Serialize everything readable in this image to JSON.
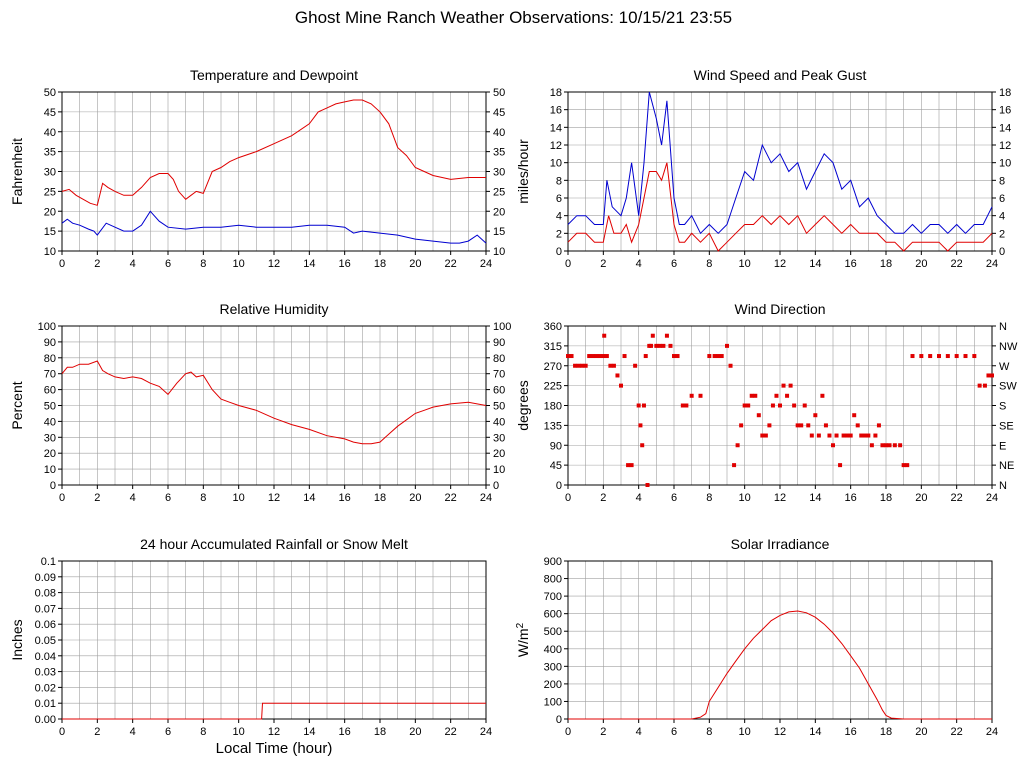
{
  "title": "Ghost Mine Ranch Weather Observations: 10/15/21 23:55",
  "xlabel_bottom": "Local Time (hour)",
  "colors": {
    "red": "#e00000",
    "blue": "#0000d0",
    "grid": "#a0a0a0"
  },
  "chart_data": [
    {
      "id": "temp",
      "type": "line",
      "title": "Temperature and Dewpoint",
      "ylabel": "Fahrenheit",
      "xlim": [
        0,
        24
      ],
      "ylim": [
        10,
        50
      ],
      "xticks": [
        0,
        2,
        4,
        6,
        8,
        10,
        12,
        14,
        16,
        18,
        20,
        22,
        24
      ],
      "yticks": [
        10,
        15,
        20,
        25,
        30,
        35,
        40,
        45,
        50
      ],
      "ytick_labels": [
        "10",
        "15",
        "20",
        "25",
        "30",
        "35",
        "40",
        "45",
        "50"
      ],
      "right_ticks": [
        "10",
        "15",
        "20",
        "25",
        "30",
        "35",
        "40",
        "45",
        "50"
      ],
      "series": [
        {
          "color": "#e00000",
          "x": [
            0,
            0.4,
            0.8,
            1.2,
            1.6,
            2,
            2.3,
            2.6,
            3,
            3.5,
            4,
            4.5,
            5,
            5.5,
            6,
            6.3,
            6.6,
            7,
            7.3,
            7.6,
            8,
            8.5,
            9,
            9.5,
            10,
            11,
            12,
            13,
            14,
            14.5,
            15,
            15.5,
            16,
            16.5,
            17,
            17.5,
            18,
            18.5,
            19,
            19.5,
            20,
            20.5,
            21,
            22,
            23,
            24
          ],
          "y": [
            25,
            25.5,
            24,
            23,
            22,
            21.5,
            27,
            26,
            25,
            24,
            24,
            26,
            28.5,
            29.5,
            29.5,
            28,
            25,
            23,
            24,
            25,
            24.5,
            30,
            31,
            32.5,
            33.5,
            35,
            37,
            39,
            42,
            45,
            46,
            47,
            47.5,
            48,
            48,
            47,
            45,
            42,
            36,
            34,
            31,
            30,
            29,
            28,
            28.5,
            28.5
          ]
        },
        {
          "color": "#0000d0",
          "x": [
            0,
            0.3,
            0.6,
            1,
            1.5,
            1.8,
            2,
            2.5,
            3,
            3.5,
            4,
            4.5,
            5,
            5.5,
            6,
            7,
            8,
            9,
            10,
            11,
            12,
            13,
            14,
            15,
            16,
            16.5,
            17,
            18,
            19,
            20,
            21,
            22,
            22.5,
            23,
            23.5,
            24
          ],
          "y": [
            17,
            18,
            17,
            16.5,
            15.5,
            15,
            14,
            17,
            16,
            15,
            15,
            16.5,
            20,
            17.5,
            16,
            15.5,
            16,
            16,
            16.5,
            16,
            16,
            16,
            16.5,
            16.5,
            16,
            14.5,
            15,
            14.5,
            14,
            13,
            12.5,
            12,
            12,
            12.5,
            14,
            12
          ]
        }
      ]
    },
    {
      "id": "wind",
      "type": "line",
      "title": "Wind Speed and Peak Gust",
      "ylabel": "miles/hour",
      "xlim": [
        0,
        24
      ],
      "ylim": [
        0,
        18
      ],
      "xticks": [
        0,
        2,
        4,
        6,
        8,
        10,
        12,
        14,
        16,
        18,
        20,
        22,
        24
      ],
      "yticks": [
        0,
        2,
        4,
        6,
        8,
        10,
        12,
        14,
        16,
        18
      ],
      "ytick_labels": [
        "0",
        "2",
        "4",
        "6",
        "8",
        "10",
        "12",
        "14",
        "16",
        "18"
      ],
      "right_ticks": [
        "0",
        "2",
        "4",
        "6",
        "8",
        "10",
        "12",
        "14",
        "16",
        "18"
      ],
      "series": [
        {
          "color": "#0000d0",
          "x": [
            0,
            0.5,
            1,
            1.5,
            2,
            2.2,
            2.5,
            3,
            3.3,
            3.6,
            4,
            4.3,
            4.6,
            5,
            5.3,
            5.6,
            6,
            6.3,
            6.6,
            7,
            7.5,
            8,
            8.5,
            9,
            9.5,
            10,
            10.5,
            11,
            11.5,
            12,
            12.5,
            13,
            13.5,
            14,
            14.5,
            15,
            15.5,
            16,
            16.5,
            17,
            17.5,
            18,
            18.5,
            19,
            19.5,
            20,
            20.5,
            21,
            21.5,
            22,
            22.5,
            23,
            23.5,
            24
          ],
          "y": [
            3,
            4,
            4,
            3,
            3,
            8,
            5,
            4,
            6,
            10,
            4,
            10,
            18,
            15,
            12,
            17,
            6,
            3,
            3,
            4,
            2,
            3,
            2,
            3,
            6,
            9,
            8,
            12,
            10,
            11,
            9,
            10,
            7,
            9,
            11,
            10,
            7,
            8,
            5,
            6,
            4,
            3,
            2,
            2,
            3,
            2,
            3,
            3,
            2,
            3,
            2,
            3,
            3,
            5
          ]
        },
        {
          "color": "#e00000",
          "x": [
            0,
            0.5,
            1,
            1.5,
            2,
            2.3,
            2.6,
            3,
            3.3,
            3.6,
            4,
            4.3,
            4.6,
            5,
            5.3,
            5.6,
            6,
            6.3,
            6.6,
            7,
            7.5,
            8,
            8.5,
            9,
            9.5,
            10,
            10.5,
            11,
            11.5,
            12,
            12.5,
            13,
            13.5,
            14,
            14.5,
            15,
            15.5,
            16,
            16.5,
            17,
            17.5,
            18,
            18.5,
            19,
            19.5,
            20,
            20.5,
            21,
            21.5,
            22,
            22.5,
            23,
            23.5,
            24
          ],
          "y": [
            1,
            2,
            2,
            1,
            1,
            4,
            2,
            2,
            3,
            1,
            3,
            6,
            9,
            9,
            8,
            10,
            3,
            1,
            1,
            2,
            1,
            2,
            0,
            1,
            2,
            3,
            3,
            4,
            3,
            4,
            3,
            4,
            2,
            3,
            4,
            3,
            2,
            3,
            2,
            2,
            2,
            1,
            1,
            0,
            1,
            1,
            1,
            1,
            0,
            1,
            1,
            1,
            1,
            2
          ]
        }
      ]
    },
    {
      "id": "rh",
      "type": "line",
      "title": "Relative Humidity",
      "ylabel": "Percent",
      "xlim": [
        0,
        24
      ],
      "ylim": [
        0,
        100
      ],
      "xticks": [
        0,
        2,
        4,
        6,
        8,
        10,
        12,
        14,
        16,
        18,
        20,
        22,
        24
      ],
      "yticks": [
        0,
        10,
        20,
        30,
        40,
        50,
        60,
        70,
        80,
        90,
        100
      ],
      "ytick_labels": [
        "0",
        "10",
        "20",
        "30",
        "40",
        "50",
        "60",
        "70",
        "80",
        "90",
        "100"
      ],
      "right_ticks": [
        "0",
        "10",
        "20",
        "30",
        "40",
        "50",
        "60",
        "70",
        "80",
        "90",
        "100"
      ],
      "series": [
        {
          "color": "#e00000",
          "x": [
            0,
            0.3,
            0.6,
            1,
            1.5,
            2,
            2.3,
            2.6,
            3,
            3.5,
            4,
            4.5,
            5,
            5.5,
            6,
            6.5,
            7,
            7.3,
            7.6,
            8,
            8.5,
            9,
            9.5,
            10,
            11,
            12,
            13,
            14,
            15,
            16,
            16.5,
            17,
            17.5,
            18,
            18.5,
            19,
            19.5,
            20,
            20.5,
            21,
            21.5,
            22,
            23,
            24
          ],
          "y": [
            70,
            74,
            74,
            76,
            76,
            78,
            72,
            70,
            68,
            67,
            68,
            67,
            64,
            62,
            57,
            64,
            70,
            71,
            68,
            69,
            60,
            54,
            52,
            50,
            47,
            42,
            38,
            35,
            31,
            29,
            27,
            26,
            26,
            27,
            32,
            37,
            41,
            45,
            47,
            49,
            50,
            51,
            52,
            50
          ]
        }
      ]
    },
    {
      "id": "wdir",
      "type": "scatter",
      "title": "Wind Direction",
      "ylabel": "degrees",
      "xlim": [
        0,
        24
      ],
      "ylim": [
        0,
        360
      ],
      "xticks": [
        0,
        2,
        4,
        6,
        8,
        10,
        12,
        14,
        16,
        18,
        20,
        22,
        24
      ],
      "yticks": [
        0,
        45,
        90,
        135,
        180,
        225,
        270,
        315,
        360
      ],
      "ytick_labels": [
        "0",
        "45",
        "90",
        "135",
        "180",
        "225",
        "270",
        "315",
        "360"
      ],
      "right_ticks": [
        "N",
        "NE",
        "E",
        "SE",
        "S",
        "SW",
        "W",
        "NW",
        "N"
      ],
      "series": [
        {
          "color": "#e00000",
          "x": [
            0,
            0.2,
            0.4,
            0.6,
            0.8,
            1,
            1.2,
            1.4,
            1.6,
            1.8,
            2,
            2.05,
            2.2,
            2.4,
            2.6,
            2.8,
            3,
            3.2,
            3.4,
            3.6,
            3.8,
            4,
            4.1,
            4.2,
            4.3,
            4.4,
            4.5,
            4.6,
            4.7,
            4.8,
            5,
            5.2,
            5.4,
            5.6,
            5.8,
            6,
            6.2,
            6.5,
            6.7,
            7,
            7.5,
            8,
            8.3,
            8.5,
            8.7,
            9,
            9.2,
            9.4,
            9.6,
            9.8,
            10,
            10.2,
            10.4,
            10.6,
            10.8,
            11,
            11.2,
            11.4,
            11.6,
            11.8,
            12,
            12.2,
            12.4,
            12.6,
            12.8,
            13,
            13.2,
            13.4,
            13.6,
            13.8,
            14,
            14.2,
            14.4,
            14.6,
            14.8,
            15,
            15.2,
            15.4,
            15.6,
            15.8,
            16,
            16.2,
            16.4,
            16.6,
            16.8,
            17,
            17.2,
            17.4,
            17.6,
            17.8,
            18,
            18.2,
            18.5,
            18.8,
            19,
            19.2,
            19.5,
            20,
            20.5,
            21,
            21.5,
            22,
            22.5,
            23,
            23.3,
            23.6,
            23.8,
            24
          ],
          "y": [
            292,
            292,
            270,
            270,
            270,
            270,
            292,
            292,
            292,
            292,
            292,
            338,
            292,
            270,
            270,
            248,
            225,
            292,
            45,
            45,
            270,
            180,
            135,
            90,
            180,
            292,
            0,
            315,
            315,
            338,
            315,
            315,
            315,
            338,
            315,
            292,
            292,
            180,
            180,
            202,
            202,
            292,
            292,
            292,
            292,
            315,
            270,
            45,
            90,
            135,
            180,
            180,
            202,
            202,
            158,
            112,
            112,
            135,
            180,
            202,
            180,
            225,
            202,
            225,
            180,
            135,
            135,
            180,
            135,
            112,
            158,
            112,
            202,
            135,
            112,
            90,
            112,
            45,
            112,
            112,
            112,
            158,
            135,
            112,
            112,
            112,
            90,
            112,
            135,
            90,
            90,
            90,
            90,
            90,
            45,
            45,
            292,
            292,
            292,
            292,
            292,
            292,
            292,
            292,
            225,
            225,
            248,
            248
          ]
        }
      ]
    },
    {
      "id": "rain",
      "type": "line",
      "title": "24 hour Accumulated Rainfall or Snow Melt",
      "ylabel": "Inches",
      "xlim": [
        0,
        24
      ],
      "ylim": [
        0,
        0.1
      ],
      "xticks": [
        0,
        2,
        4,
        6,
        8,
        10,
        12,
        14,
        16,
        18,
        20,
        22,
        24
      ],
      "yticks": [
        0,
        0.01,
        0.02,
        0.03,
        0.04,
        0.05,
        0.06,
        0.07,
        0.08,
        0.09,
        0.1
      ],
      "ytick_labels": [
        "0.00",
        "0.01",
        "0.02",
        "0.03",
        "0.04",
        "0.05",
        "0.06",
        "0.07",
        "0.08",
        "0.09",
        "0.1"
      ],
      "right_ticks": [],
      "series": [
        {
          "color": "#e00000",
          "x": [
            0,
            11.3,
            11.35,
            24
          ],
          "y": [
            0,
            0,
            0.01,
            0.01
          ]
        }
      ]
    },
    {
      "id": "solar",
      "type": "line",
      "title": "Solar Irradiance",
      "ylabel": "W/m",
      "ylabel_sup": "2",
      "xlim": [
        0,
        24
      ],
      "ylim": [
        0,
        900
      ],
      "xticks": [
        0,
        2,
        4,
        6,
        8,
        10,
        12,
        14,
        16,
        18,
        20,
        22,
        24
      ],
      "yticks": [
        0,
        100,
        200,
        300,
        400,
        500,
        600,
        700,
        800,
        900
      ],
      "ytick_labels": [
        "0",
        "100",
        "200",
        "300",
        "400",
        "500",
        "600",
        "700",
        "800",
        "900"
      ],
      "right_ticks": [],
      "series": [
        {
          "color": "#e00000",
          "x": [
            0,
            7,
            7.5,
            7.8,
            8,
            8.5,
            9,
            9.5,
            10,
            10.5,
            11,
            11.5,
            12,
            12.5,
            13,
            13.5,
            14,
            14.5,
            15,
            15.5,
            16,
            16.5,
            17,
            17.5,
            17.8,
            18,
            18.3,
            19,
            24
          ],
          "y": [
            0,
            0,
            10,
            30,
            100,
            180,
            260,
            330,
            400,
            460,
            510,
            560,
            590,
            610,
            615,
            605,
            580,
            540,
            490,
            430,
            360,
            290,
            200,
            110,
            50,
            20,
            5,
            0,
            0
          ]
        }
      ]
    }
  ]
}
